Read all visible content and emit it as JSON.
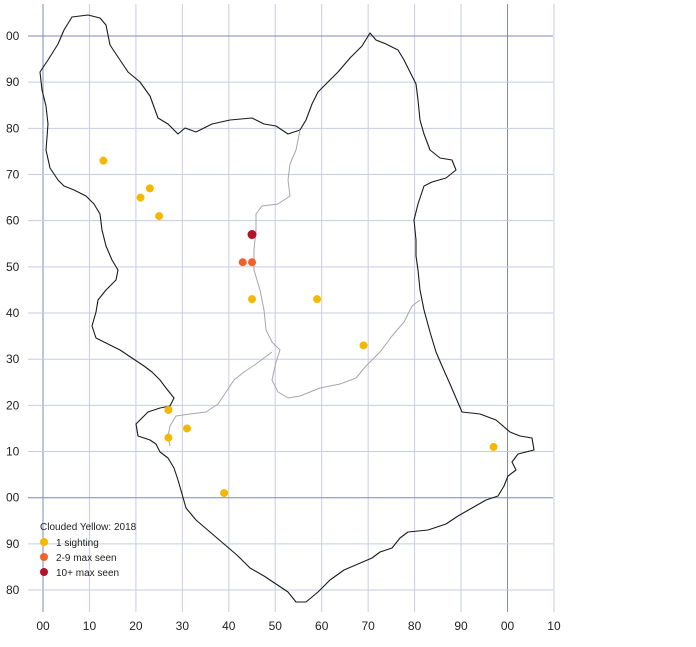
{
  "legend": {
    "title": "Clouded Yellow:  2018",
    "items": [
      {
        "label": "1 sighting",
        "color": "#f5b800"
      },
      {
        "label": "2-9 max seen",
        "color": "#f0612b"
      },
      {
        "label": "10+ max seen",
        "color": "#b3122b"
      }
    ]
  },
  "axes": {
    "x_labels": [
      "00",
      "10",
      "20",
      "30",
      "40",
      "50",
      "60",
      "70",
      "80",
      "90",
      "00",
      "10"
    ],
    "y_labels": [
      "00",
      "90",
      "80",
      "70",
      "60",
      "50",
      "40",
      "30",
      "20",
      "10",
      "00",
      "90",
      "80"
    ]
  },
  "colors": {
    "one": "#f5b800",
    "few": "#f0612b",
    "many": "#b3122b"
  },
  "sightings": [
    {
      "e": 13,
      "n": 73,
      "level": "one"
    },
    {
      "e": 23,
      "n": 67,
      "level": "one"
    },
    {
      "e": 21,
      "n": 65,
      "level": "one"
    },
    {
      "e": 25,
      "n": 61,
      "level": "one"
    },
    {
      "e": 45,
      "n": 57,
      "level": "many"
    },
    {
      "e": 43,
      "n": 51,
      "level": "few"
    },
    {
      "e": 45,
      "n": 51,
      "level": "few"
    },
    {
      "e": 45,
      "n": 43,
      "level": "one"
    },
    {
      "e": 59,
      "n": 43,
      "level": "one"
    },
    {
      "e": 69,
      "n": 33,
      "level": "one"
    },
    {
      "e": 27,
      "n": 19,
      "level": "one"
    },
    {
      "e": 31,
      "n": 15,
      "level": "one"
    },
    {
      "e": 27,
      "n": 13,
      "level": "one"
    },
    {
      "e": 97,
      "n": 11,
      "level": "one"
    },
    {
      "e": 39,
      "n": 1,
      "level": "one"
    }
  ]
}
